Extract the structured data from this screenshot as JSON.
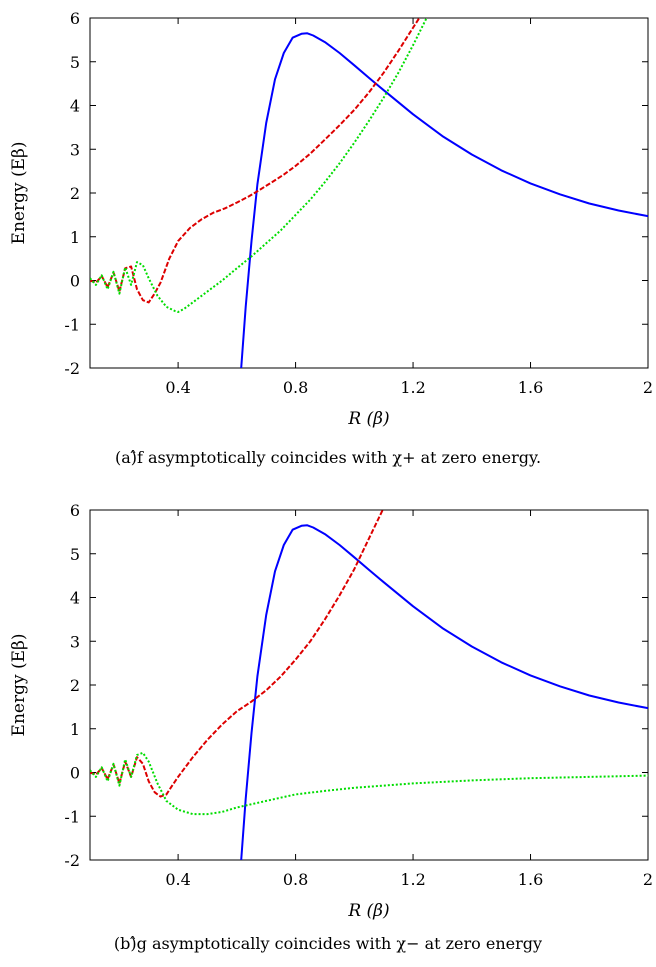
{
  "figure": {
    "captions": [
      "(a)̂f asymptotically coincides with χ+ at zero energy.",
      "(b)̂g asymptotically coincides with χ− at zero energy"
    ]
  },
  "chart_data": [
    {
      "type": "line",
      "title": "",
      "caption": "(a)̂f asymptotically coincides with χ+ at zero energy.",
      "xlabel": "R (β)",
      "ylabel": "Energy (Eβ)",
      "xlim": [
        0.1,
        2.0
      ],
      "ylim": [
        -2,
        6
      ],
      "xticks": [
        0.4,
        0.8,
        1.2,
        1.6,
        2
      ],
      "xticklabels": [
        "0.4",
        "0.8",
        "1.2",
        "1.6",
        "2"
      ],
      "yticks": [
        -2,
        -1,
        0,
        1,
        2,
        3,
        4,
        5,
        6
      ],
      "yticklabels": [
        "-2",
        "-1",
        "0",
        "1",
        "2",
        "3",
        "4",
        "5",
        "6"
      ],
      "grid": false,
      "series": [
        {
          "color": "#0000ff",
          "style": "solid",
          "x": [
            0.615,
            0.63,
            0.65,
            0.67,
            0.7,
            0.73,
            0.76,
            0.79,
            0.82,
            0.84,
            0.86,
            0.9,
            0.95,
            1.0,
            1.05,
            1.1,
            1.2,
            1.3,
            1.4,
            1.5,
            1.6,
            1.7,
            1.8,
            1.9,
            2.0
          ],
          "y": [
            -2.0,
            -0.6,
            0.9,
            2.2,
            3.6,
            4.6,
            5.2,
            5.55,
            5.64,
            5.65,
            5.6,
            5.45,
            5.2,
            4.92,
            4.63,
            4.35,
            3.8,
            3.3,
            2.88,
            2.52,
            2.22,
            1.97,
            1.76,
            1.6,
            1.47
          ]
        },
        {
          "color": "#dd0000",
          "style": "dashed",
          "x": [
            0.1,
            0.12,
            0.14,
            0.16,
            0.18,
            0.2,
            0.22,
            0.24,
            0.26,
            0.28,
            0.3,
            0.32,
            0.34,
            0.37,
            0.4,
            0.44,
            0.48,
            0.52,
            0.56,
            0.6,
            0.64,
            0.68,
            0.72,
            0.76,
            0.8,
            0.85,
            0.9,
            0.95,
            1.0,
            1.05,
            1.1,
            1.15,
            1.2,
            1.25
          ],
          "y": [
            0.0,
            -0.05,
            0.1,
            -0.15,
            0.18,
            -0.25,
            0.28,
            0.32,
            -0.2,
            -0.45,
            -0.5,
            -0.3,
            -0.05,
            0.5,
            0.9,
            1.2,
            1.4,
            1.55,
            1.65,
            1.78,
            1.92,
            2.08,
            2.25,
            2.42,
            2.62,
            2.9,
            3.22,
            3.55,
            3.9,
            4.3,
            4.75,
            5.25,
            5.78,
            6.3
          ]
        },
        {
          "color": "#00dd00",
          "style": "dotted",
          "x": [
            0.1,
            0.12,
            0.14,
            0.16,
            0.18,
            0.2,
            0.22,
            0.24,
            0.26,
            0.28,
            0.3,
            0.33,
            0.36,
            0.39,
            0.4,
            0.42,
            0.45,
            0.5,
            0.55,
            0.6,
            0.65,
            0.7,
            0.75,
            0.8,
            0.85,
            0.9,
            0.95,
            1.0,
            1.05,
            1.1,
            1.15,
            1.2,
            1.25,
            1.3
          ],
          "y": [
            0.05,
            -0.1,
            0.12,
            -0.2,
            0.2,
            -0.3,
            0.3,
            -0.1,
            0.42,
            0.35,
            0.05,
            -0.35,
            -0.6,
            -0.7,
            -0.72,
            -0.65,
            -0.5,
            -0.25,
            0.0,
            0.28,
            0.55,
            0.85,
            1.15,
            1.5,
            1.85,
            2.25,
            2.68,
            3.15,
            3.65,
            4.18,
            4.75,
            5.38,
            6.05,
            6.7
          ]
        }
      ]
    },
    {
      "type": "line",
      "title": "",
      "caption": "(b)̂g asymptotically coincides with χ− at zero energy",
      "xlabel": "R (β)",
      "ylabel": "Energy (Eβ)",
      "xlim": [
        0.1,
        2.0
      ],
      "ylim": [
        -2,
        6
      ],
      "xticks": [
        0.4,
        0.8,
        1.2,
        1.6,
        2
      ],
      "xticklabels": [
        "0.4",
        "0.8",
        "1.2",
        "1.6",
        "2"
      ],
      "yticks": [
        -2,
        -1,
        0,
        1,
        2,
        3,
        4,
        5,
        6
      ],
      "yticklabels": [
        "-2",
        "-1",
        "0",
        "1",
        "2",
        "3",
        "4",
        "5",
        "6"
      ],
      "grid": false,
      "series": [
        {
          "color": "#0000ff",
          "style": "solid",
          "x": [
            0.615,
            0.63,
            0.65,
            0.67,
            0.7,
            0.73,
            0.76,
            0.79,
            0.82,
            0.84,
            0.86,
            0.9,
            0.95,
            1.0,
            1.05,
            1.1,
            1.2,
            1.3,
            1.4,
            1.5,
            1.6,
            1.7,
            1.8,
            1.9,
            2.0
          ],
          "y": [
            -2.0,
            -0.6,
            0.9,
            2.2,
            3.6,
            4.6,
            5.2,
            5.55,
            5.64,
            5.65,
            5.6,
            5.45,
            5.2,
            4.92,
            4.63,
            4.35,
            3.8,
            3.3,
            2.88,
            2.52,
            2.22,
            1.97,
            1.76,
            1.6,
            1.47
          ]
        },
        {
          "color": "#dd0000",
          "style": "dashed",
          "x": [
            0.1,
            0.12,
            0.14,
            0.16,
            0.18,
            0.2,
            0.22,
            0.24,
            0.26,
            0.28,
            0.3,
            0.32,
            0.34,
            0.36,
            0.38,
            0.4,
            0.45,
            0.5,
            0.55,
            0.6,
            0.65,
            0.7,
            0.75,
            0.8,
            0.85,
            0.9,
            0.95,
            1.0,
            1.05,
            1.1
          ],
          "y": [
            0.0,
            -0.05,
            0.1,
            -0.15,
            0.18,
            -0.25,
            0.25,
            -0.1,
            0.35,
            0.2,
            -0.2,
            -0.45,
            -0.55,
            -0.5,
            -0.3,
            -0.1,
            0.35,
            0.75,
            1.1,
            1.4,
            1.62,
            1.88,
            2.2,
            2.58,
            3.0,
            3.5,
            4.05,
            4.65,
            5.35,
            6.05
          ]
        },
        {
          "color": "#00dd00",
          "style": "dotted",
          "x": [
            0.1,
            0.12,
            0.14,
            0.16,
            0.18,
            0.2,
            0.22,
            0.24,
            0.26,
            0.28,
            0.3,
            0.33,
            0.36,
            0.4,
            0.45,
            0.5,
            0.55,
            0.6,
            0.7,
            0.8,
            0.9,
            1.0,
            1.2,
            1.4,
            1.6,
            1.8,
            2.0
          ],
          "y": [
            0.05,
            -0.1,
            0.12,
            -0.2,
            0.2,
            -0.3,
            0.3,
            -0.1,
            0.4,
            0.45,
            0.25,
            -0.25,
            -0.65,
            -0.85,
            -0.95,
            -0.95,
            -0.9,
            -0.8,
            -0.65,
            -0.5,
            -0.42,
            -0.35,
            -0.25,
            -0.18,
            -0.13,
            -0.1,
            -0.07
          ]
        }
      ]
    }
  ]
}
